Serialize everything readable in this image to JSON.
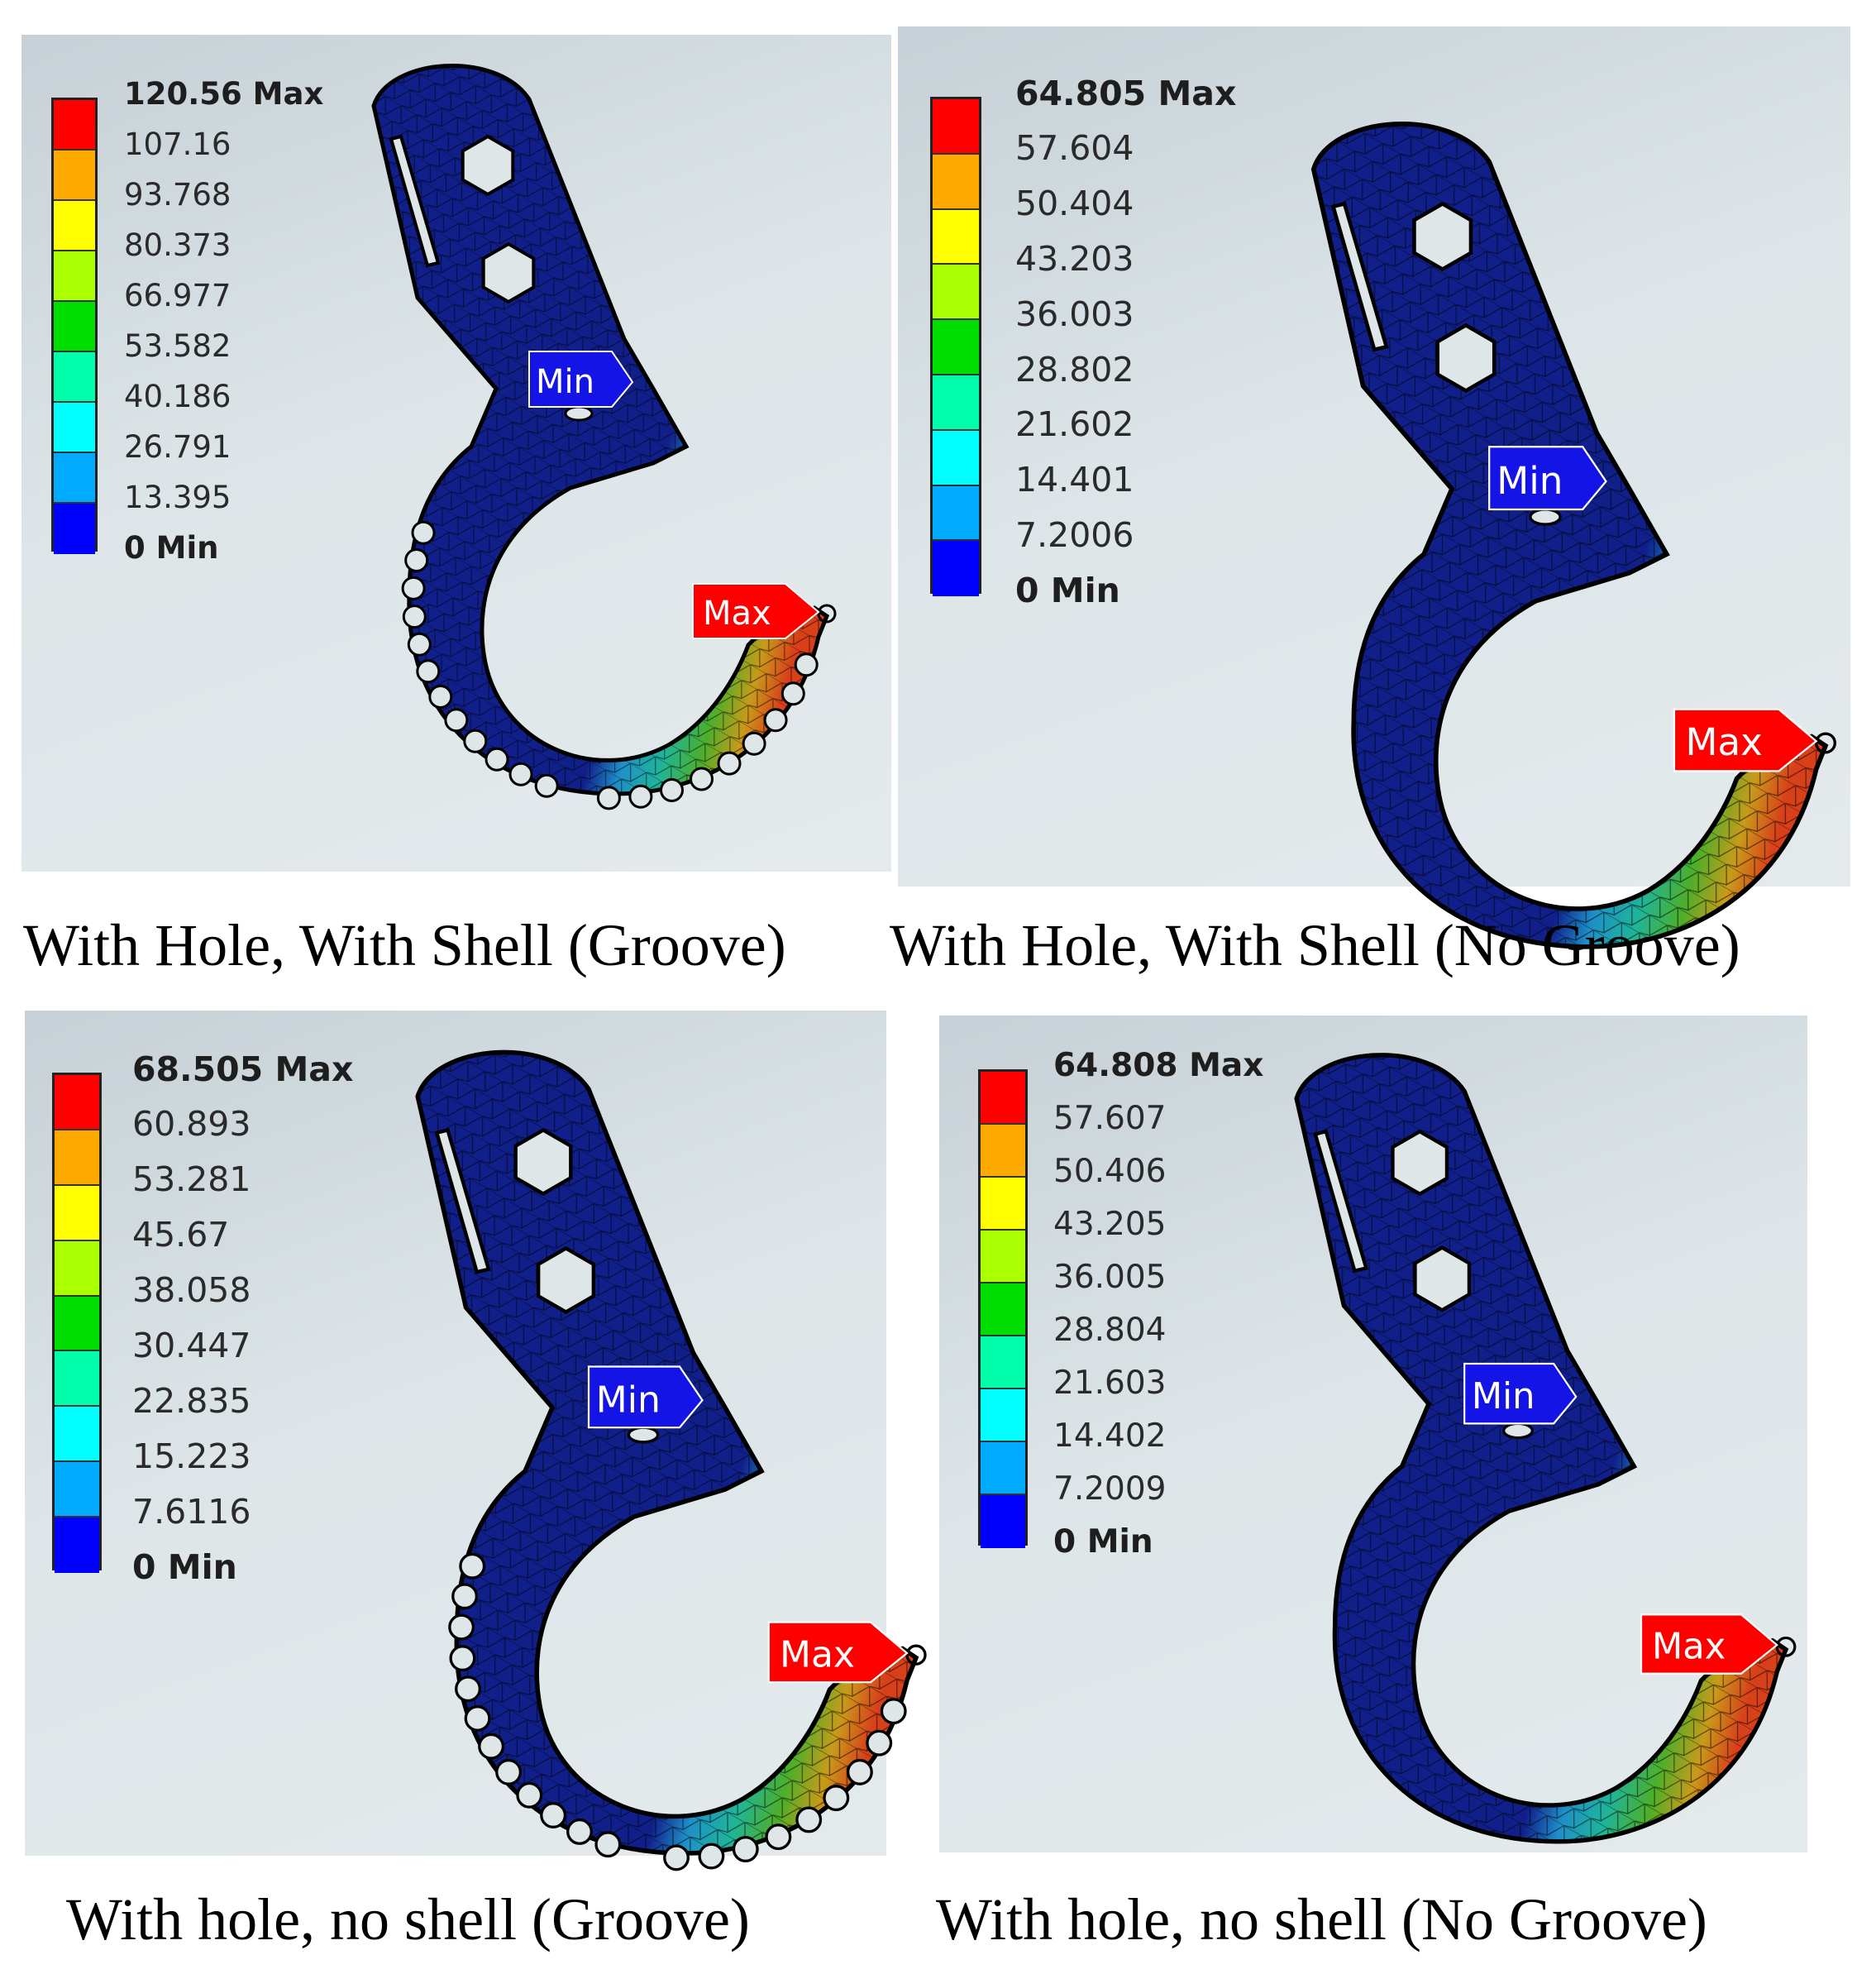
{
  "panels": [
    {
      "caption": "With Hole, With Shell (Groove)",
      "legend": {
        "max_label": "120.56 Max",
        "values": [
          "107.16",
          "93.768",
          "80.373",
          "66.977",
          "53.582",
          "40.186",
          "26.791",
          "13.395"
        ],
        "min_label": "0 Min"
      },
      "probe_min": "Min",
      "probe_max": "Max",
      "grooved": true
    },
    {
      "caption": "With Hole, With Shell (No Groove)",
      "legend": {
        "max_label": "64.805 Max",
        "values": [
          "57.604",
          "50.404",
          "43.203",
          "36.003",
          "28.802",
          "21.602",
          "14.401",
          "7.2006"
        ],
        "min_label": "0 Min"
      },
      "probe_min": "Min",
      "probe_max": "Max",
      "grooved": false
    },
    {
      "caption": "With hole, no shell (Groove)",
      "legend": {
        "max_label": "68.505 Max",
        "values": [
          "60.893",
          "53.281",
          "45.67",
          "38.058",
          "30.447",
          "22.835",
          "15.223",
          "7.6116"
        ],
        "min_label": "0 Min"
      },
      "probe_min": "Min",
      "probe_max": "Max",
      "grooved": true
    },
    {
      "caption": "With hole, no shell (No Groove)",
      "legend": {
        "max_label": "64.808 Max",
        "values": [
          "57.607",
          "50.406",
          "43.205",
          "36.005",
          "28.804",
          "21.603",
          "14.402",
          "7.2009"
        ],
        "min_label": "0 Min"
      },
      "probe_min": "Min",
      "probe_max": "Max",
      "grooved": false
    }
  ],
  "colors": {
    "scale": [
      "#ff0000",
      "#ffaa00",
      "#ffff00",
      "#aaff00",
      "#00dd00",
      "#00ffaa",
      "#00ffff",
      "#00aaff",
      "#0000ff"
    ],
    "hook_base": "#101f8a",
    "probe_min": "#1414e6",
    "probe_max": "#ff0000"
  }
}
